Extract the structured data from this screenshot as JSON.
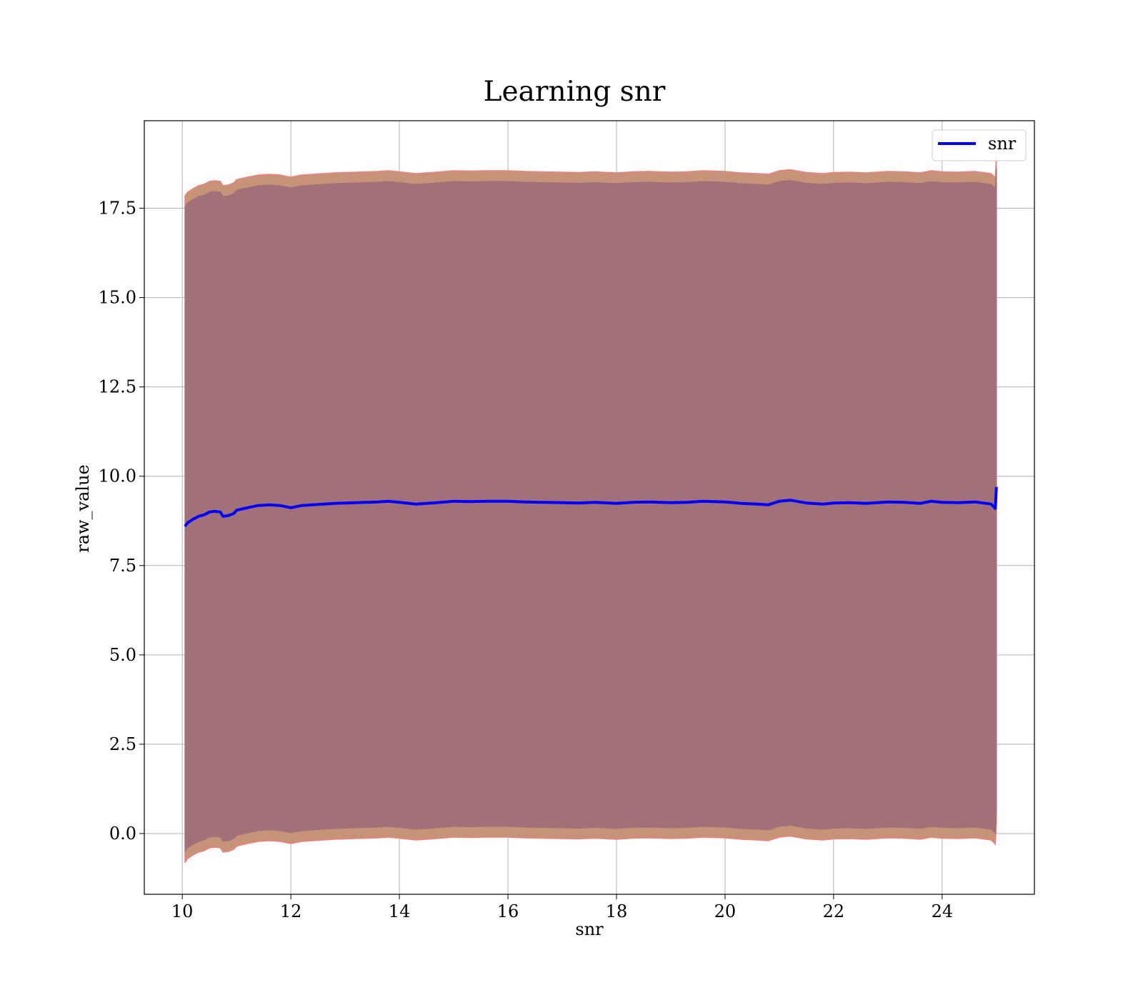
{
  "chart_data": {
    "type": "line",
    "title": "Learning snr",
    "xlabel": "snr",
    "ylabel": "raw_value",
    "xlim": [
      9.3,
      25.7
    ],
    "ylim": [
      -1.7,
      19.95
    ],
    "xticks": [
      10,
      12,
      14,
      16,
      18,
      20,
      22,
      24
    ],
    "xtick_labels": [
      "10",
      "12",
      "14",
      "16",
      "18",
      "20",
      "22",
      "24"
    ],
    "yticks": [
      0.0,
      2.5,
      5.0,
      7.5,
      10.0,
      12.5,
      15.0,
      17.5
    ],
    "ytick_labels": [
      "0.0",
      "2.5",
      "5.0",
      "7.5",
      "10.0",
      "12.5",
      "15.0",
      "17.5"
    ],
    "grid": true,
    "legend": {
      "position": "top-right",
      "entries": [
        "snr"
      ]
    },
    "colors": {
      "line": "#0000ff",
      "inner_band": "#a17079",
      "outer_band": "#c79378",
      "outer_band_edge": "#f08080",
      "grid": "#b0b0b0"
    },
    "x": [
      10.05,
      10.1,
      10.2,
      10.3,
      10.4,
      10.5,
      10.6,
      10.7,
      10.75,
      10.85,
      10.95,
      11.0,
      11.2,
      11.4,
      11.6,
      11.8,
      12.0,
      12.2,
      12.4,
      12.6,
      12.8,
      13.0,
      13.2,
      13.4,
      13.6,
      13.8,
      14.0,
      14.3,
      14.6,
      15.0,
      15.3,
      15.6,
      16.0,
      16.3,
      16.6,
      17.0,
      17.3,
      17.6,
      18.0,
      18.3,
      18.6,
      19.0,
      19.3,
      19.6,
      20.0,
      20.3,
      20.6,
      20.8,
      21.0,
      21.2,
      21.5,
      21.8,
      22.0,
      22.3,
      22.6,
      23.0,
      23.3,
      23.6,
      23.8,
      24.0,
      24.3,
      24.6,
      24.9,
      24.95,
      24.98,
      25.0
    ],
    "series": [
      {
        "name": "snr",
        "values": [
          8.6,
          8.7,
          8.8,
          8.88,
          8.92,
          9.0,
          9.02,
          9.0,
          8.88,
          8.9,
          8.96,
          9.05,
          9.12,
          9.18,
          9.2,
          9.18,
          9.12,
          9.18,
          9.2,
          9.22,
          9.24,
          9.25,
          9.26,
          9.27,
          9.28,
          9.3,
          9.27,
          9.22,
          9.25,
          9.3,
          9.29,
          9.3,
          9.3,
          9.28,
          9.27,
          9.26,
          9.25,
          9.27,
          9.24,
          9.27,
          9.28,
          9.26,
          9.27,
          9.3,
          9.28,
          9.24,
          9.22,
          9.2,
          9.3,
          9.33,
          9.25,
          9.22,
          9.25,
          9.26,
          9.24,
          9.28,
          9.27,
          9.24,
          9.3,
          9.27,
          9.26,
          9.28,
          9.22,
          9.15,
          9.1,
          9.7
        ]
      }
    ],
    "bands": [
      {
        "label": "outer",
        "lower_offset": -9.4,
        "upper_offset": 9.25
      },
      {
        "label": "inner",
        "lower_offset": -9.1,
        "upper_offset": 8.95
      }
    ]
  }
}
